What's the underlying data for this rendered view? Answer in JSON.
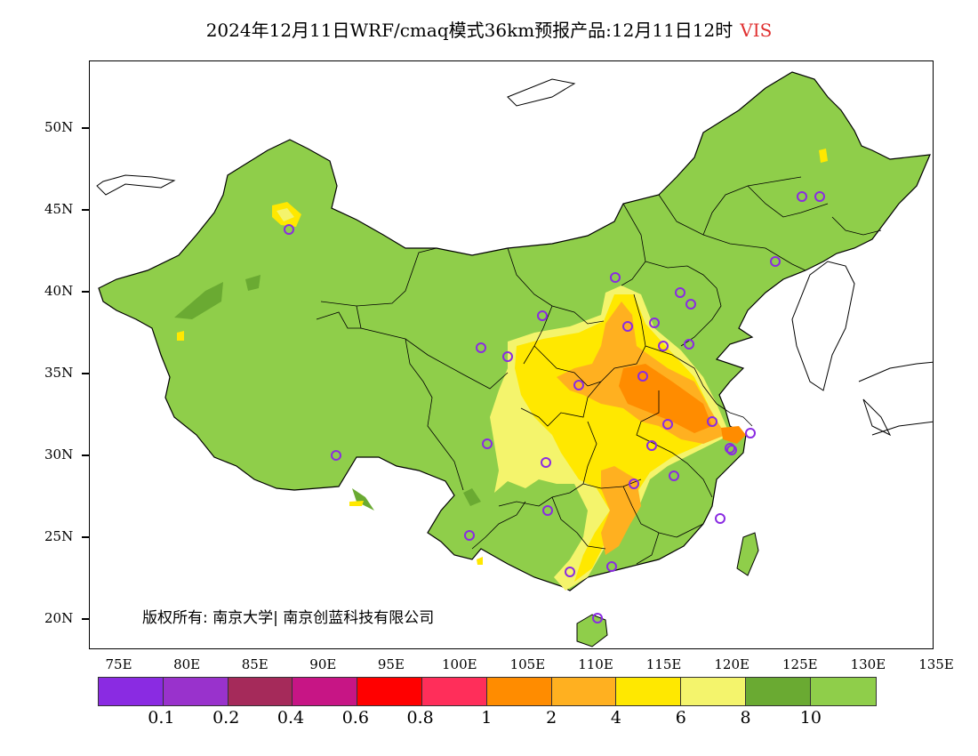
{
  "title": {
    "main": "2024年12月11日WRF/cmaq模式36km预报产品:12月11日12时",
    "variable": "VIS",
    "variable_color": "#e03030"
  },
  "axes": {
    "lat_labels": [
      "50N",
      "45N",
      "40N",
      "35N",
      "30N",
      "25N",
      "20N"
    ],
    "lon_labels": [
      "75E",
      "80E",
      "85E",
      "90E",
      "95E",
      "100E",
      "105E",
      "110E",
      "115E",
      "120E",
      "125E",
      "130E",
      "135E"
    ]
  },
  "copyright": "版权所有: 南京大学| 南京创蓝科技有限公司",
  "colorbar": {
    "colors": [
      "#8a2be2",
      "#9932cc",
      "#a52a5a",
      "#c71585",
      "#ff0000",
      "#ff2e5a",
      "#ff8c00",
      "#ffb020",
      "#ffe800",
      "#f4f46c",
      "#6aaa32",
      "#8fce4a"
    ],
    "labels": [
      "0.1",
      "0.2",
      "0.4",
      "0.6",
      "0.8",
      "1",
      "2",
      "4",
      "6",
      "8",
      "10"
    ]
  },
  "map_colors": {
    "land_good": "#8fce4a",
    "land_dark": "#6aaa32",
    "vis_8": "#f4f46c",
    "vis_6": "#ffe800",
    "vis_4": "#ffb020",
    "vis_2": "#ff8c00",
    "station_marker": "#8a2be2"
  }
}
